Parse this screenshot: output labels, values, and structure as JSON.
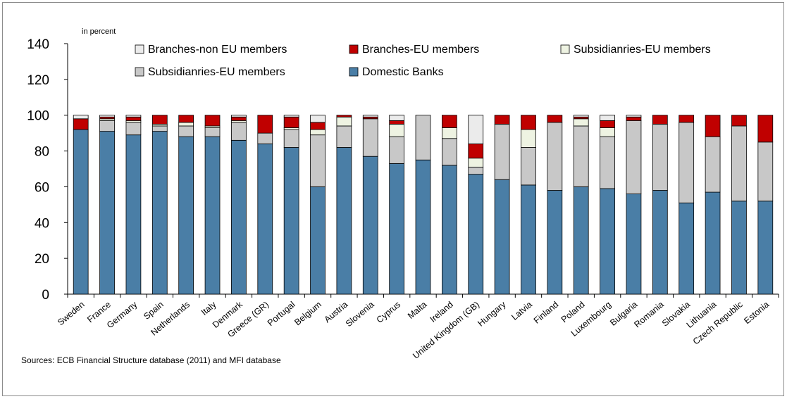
{
  "chart_data": {
    "type": "bar",
    "stacked": true,
    "unit_label": "in percent",
    "source_note": "Sources: ECB Financial Structure database (2011) and MFI database",
    "ylim": [
      0,
      140
    ],
    "yticks": [
      0,
      20,
      40,
      60,
      80,
      100,
      120,
      140
    ],
    "grid": false,
    "legend_position": "top",
    "categories": [
      "Sweden",
      "France",
      "Germany",
      "Spain",
      "Netherlands",
      "Italy",
      "Denmark",
      "Greece (GR)",
      "Portugal",
      "Belgium",
      "Austria",
      "Slovenia",
      "Cyprus",
      "Malta",
      "Ireland",
      "United Kingdom (GB)",
      "Hungary",
      "Latvia",
      "Finland",
      "Poland",
      "Luxembourg",
      "Bulgaria",
      "Romania",
      "Slovakia",
      "Lithuania",
      "Czech Republic",
      "Estonia"
    ],
    "series": [
      {
        "name": "Domestic Banks",
        "color": "#4a7ea6",
        "values": [
          92,
          91,
          89,
          91,
          88,
          88,
          86,
          84,
          82,
          60,
          82,
          77,
          73,
          75,
          72,
          67,
          64,
          61,
          58,
          60,
          59,
          56,
          58,
          51,
          57,
          52,
          52
        ]
      },
      {
        "name": "Subsidianries-EU members",
        "color": "#c8c8c8",
        "values": [
          0,
          6,
          7,
          3,
          6,
          5,
          10,
          6,
          10,
          29,
          12,
          21,
          15,
          25,
          15,
          4,
          31,
          21,
          38,
          34,
          29,
          41,
          37,
          45,
          31,
          42,
          33
        ]
      },
      {
        "name": "Subsidianries-EU members",
        "color": "#eef3e2",
        "values": [
          0,
          1,
          1,
          1,
          2,
          1,
          1,
          0,
          1,
          3,
          5,
          0,
          7,
          0,
          6,
          5,
          0,
          10,
          0,
          4,
          5,
          0,
          0,
          0,
          0,
          0,
          0
        ]
      },
      {
        "name": "Branches-EU members",
        "color": "#c00000",
        "values": [
          6,
          1,
          2,
          5,
          4,
          6,
          2,
          10,
          6,
          4,
          1,
          1,
          2,
          0,
          7,
          8,
          5,
          8,
          4,
          1,
          4,
          2,
          5,
          4,
          12,
          6,
          15
        ]
      },
      {
        "name": "Branches-non EU members",
        "color": "#ebebeb",
        "values": [
          2,
          1,
          1,
          0,
          0,
          0,
          1,
          0,
          1,
          4,
          0,
          1,
          3,
          0,
          0,
          16,
          0,
          0,
          0,
          1,
          3,
          1,
          0,
          0,
          0,
          0,
          0
        ]
      }
    ],
    "legend": [
      {
        "label": "Branches-non EU members",
        "series": 4
      },
      {
        "label": "Branches-EU members",
        "series": 3
      },
      {
        "label": "Subsidianries-EU members",
        "series": 2
      },
      {
        "label": "Subsidianries-EU members",
        "series": 1
      },
      {
        "label": "Domestic Banks",
        "series": 0
      }
    ]
  }
}
